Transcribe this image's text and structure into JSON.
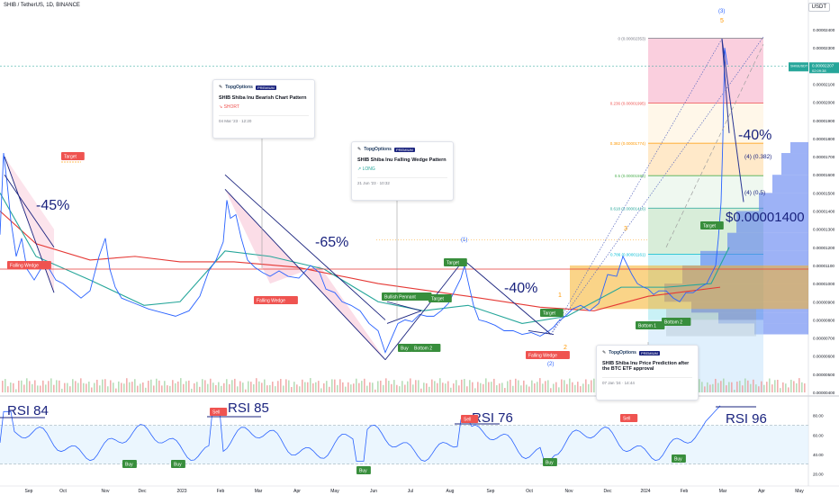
{
  "header": {
    "symbol": "SHIB / TetherUS, 1D, BINANCE",
    "quote": "USDT"
  },
  "price_tag": {
    "symbol": "SHIBUSDT",
    "value": "0.00002207",
    "countdown": "02:09:38"
  },
  "colors": {
    "accent": "#2962ff",
    "ma_red": "#e53935",
    "ma_green": "#26a69a",
    "price": "#2962ff",
    "buy": "#388e3c",
    "sell": "#ef5350",
    "target": "#ffa726"
  },
  "cards": [
    {
      "brand": "TopgOptions",
      "badge": "PREMIUM",
      "title": "SHIB Shiba Inu Bearish Chart Pattern",
      "side": "↘ SHORT",
      "date": "04 Mar '23 · 12:20"
    },
    {
      "brand": "TopgOptions",
      "badge": "PREMIUM",
      "title": "SHIB Shiba Inu Falling Wedge Pattern",
      "side": "↗ LONG",
      "date": "21 Jun '23 · 10:32"
    },
    {
      "brand": "TopgOptions",
      "badge": "PREMIUM",
      "title": "SHIB Shiba Inu Price Prediction after the BTC ETF approval",
      "side": "",
      "date": "07 Jan '24 · 14:44"
    }
  ],
  "chart_data": {
    "type": "line",
    "price_scale": {
      "ticks": [
        "0.00002400",
        "0.00002300",
        "0.00002200",
        "0.00002100",
        "0.00002000",
        "0.00001900",
        "0.00001800",
        "0.00001700",
        "0.00001600",
        "0.00001500",
        "0.00001400",
        "0.00001300",
        "0.00001200",
        "0.00001100",
        "0.00001000",
        "0.00000900",
        "0.00000800",
        "0.00000700",
        "0.00000600",
        "0.00000500",
        "0.00000400"
      ],
      "range": [
        4e-06,
        2.4e-05
      ]
    },
    "rsi_scale": {
      "ticks": [
        "80.00",
        "60.00",
        "40.00",
        "20.00"
      ],
      "range": [
        15,
        100
      ]
    },
    "time_labels": [
      "Sep",
      "Oct",
      "Nov",
      "Dec",
      "2023",
      "Feb",
      "Mar",
      "Apr",
      "May",
      "Jun",
      "Jul",
      "Aug",
      "Sep",
      "Oct",
      "Nov",
      "Dec",
      "2024",
      "Feb",
      "Mar",
      "Apr",
      "May"
    ],
    "series": [
      {
        "x": [
          0,
          4,
          8,
          12,
          18,
          24,
          30,
          38,
          50,
          62,
          70,
          80,
          90,
          100,
          110,
          117,
          122,
          128,
          135,
          150,
          165,
          180,
          195,
          210,
          222,
          232,
          240,
          248,
          252,
          256,
          262,
          268,
          275,
          283,
          292,
          300,
          310,
          320,
          332,
          345,
          355,
          362,
          372,
          380,
          390,
          400,
          410,
          420,
          428,
          435,
          442,
          450,
          458,
          466,
          474,
          482,
          490,
          498,
          506,
          512,
          516,
          520,
          526,
          532,
          540,
          550,
          560,
          570,
          580,
          590,
          600,
          610,
          615,
          620,
          628,
          636,
          645,
          655,
          665,
          675,
          685,
          692,
          697,
          702,
          708,
          715,
          720,
          726,
          732,
          740,
          748,
          755,
          762,
          770,
          778,
          785,
          790,
          795,
          798,
          801,
          803,
          805,
          808
        ],
        "values": [
          1.27e-05,
          1.72e-05,
          1.55e-05,
          1.35e-05,
          1.15e-05,
          1.25e-05,
          1.08e-05,
          1.02e-05,
          1.12e-05,
          1.02e-05,
          1e-05,
          9.6e-06,
          9.2e-06,
          9.6e-06,
          1.15e-05,
          1.25e-05,
          1.08e-05,
          9.8e-06,
          9.2e-06,
          8.9e-06,
          8.6e-06,
          8.4e-06,
          8.2e-06,
          8.5e-06,
          9.3e-06,
          1.07e-05,
          1.13e-05,
          1.23e-05,
          1.46e-05,
          1.36e-05,
          1.38e-05,
          1.25e-05,
          1.13e-05,
          1.09e-05,
          1.06e-05,
          1.04e-05,
          1.07e-05,
          1.04e-05,
          1.03e-05,
          1.1e-05,
          1.06e-05,
          9.7e-06,
          9.5e-06,
          9e-06,
          8.8e-06,
          8.5e-06,
          7.8e-06,
          7.4e-06,
          6.2e-06,
          7e-06,
          7.8e-06,
          8e-06,
          7.9e-06,
          8.3e-06,
          8.2e-06,
          8.2e-06,
          8.5e-06,
          8.9e-06,
          9.7e-06,
          1.03e-05,
          1.1e-05,
          1.01e-05,
          8.8e-06,
          8e-06,
          7.9e-06,
          7.7e-06,
          7.4e-06,
          7.4e-06,
          7.2e-06,
          7.3e-06,
          7.1e-06,
          7.4e-06,
          7.6e-06,
          7.9e-06,
          8.2e-06,
          8.6e-06,
          8.8e-06,
          8.5e-06,
          8.9e-06,
          1.05e-05,
          1.04e-05,
          1.15e-05,
          1.1e-05,
          1.05e-05,
          1e-05,
          9.8e-06,
          9.7e-06,
          9.4e-06,
          9.6e-06,
          9.6e-06,
          9.2e-06,
          9e-06,
          9.5e-06,
          9.5e-06,
          9.8e-06,
          1e-05,
          1.05e-05,
          1.1e-05,
          1.25e-05,
          1.45e-05,
          1.8e-05,
          2.3e-05,
          2.207e-05
        ]
      }
    ],
    "fib_levels": [
      {
        "label": "0 (0.00002353)",
        "value": 2.353e-05
      },
      {
        "label": "0.236 (0.00001995)",
        "value": 1.995e-05
      },
      {
        "label": "0.382 (0.00001774)",
        "value": 1.774e-05
      },
      {
        "label": "0.5 (0.00001595)",
        "value": 1.595e-05
      },
      {
        "label": "0.618 (0.00001416)",
        "value": 1.416e-05
      },
      {
        "label": "0.786 (0.00001161)",
        "value": 1.161e-05
      }
    ],
    "annotations": {
      "pct_labels": [
        "-45%",
        "-65%",
        "-40%",
        "-40%"
      ],
      "price_target": "$0.00001400",
      "waves": [
        "(1)",
        "(2)",
        "(3)",
        "(4) (0.382)",
        "(4) (0.5)",
        "1",
        "2",
        "3",
        "5"
      ],
      "tags": {
        "target": "Target",
        "falling_wedge": "Falling Wedge",
        "bullish_pennant": "Bullish Pennant",
        "buy": "Buy",
        "bottom2": "Bottom 2",
        "bottom1": "Bottom 1",
        "sell": "Sell"
      },
      "rsi_labels": [
        "RSI 84",
        "RSI 85",
        "RSI 76",
        "RSI 96"
      ]
    },
    "legend": "none",
    "grid": false
  }
}
